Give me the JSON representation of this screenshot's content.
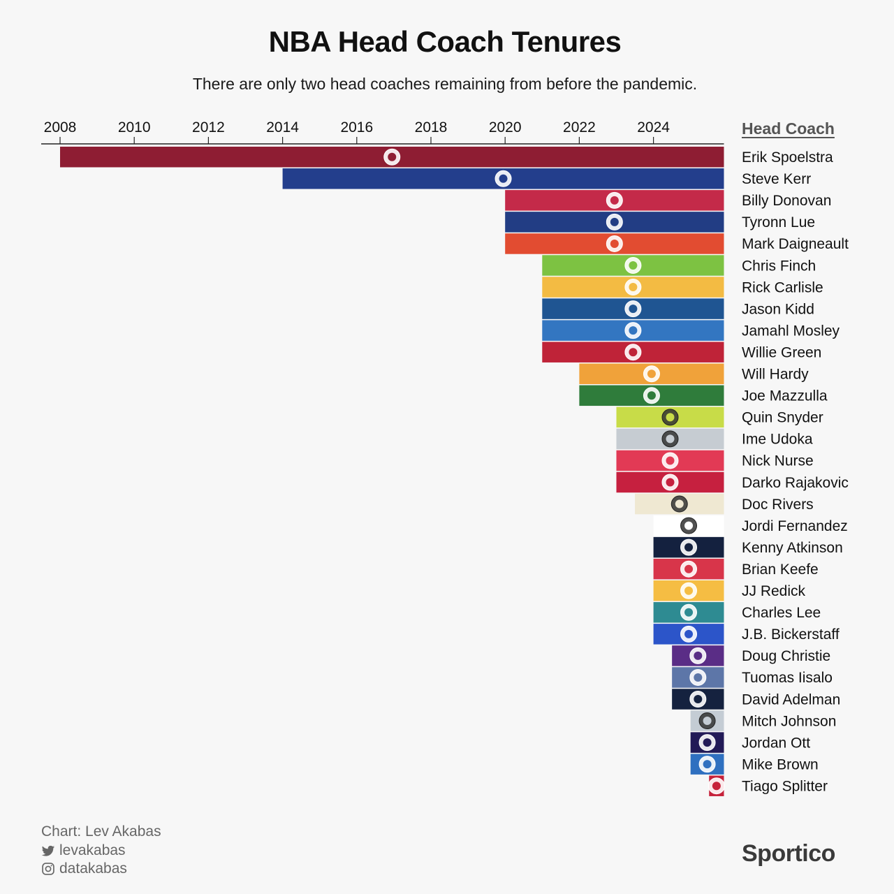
{
  "title": "NBA Head Coach Tenures",
  "subtitle": "There are only two head coaches remaining from before the pandemic.",
  "credits": {
    "chart_by": "Chart: Lev Akabas",
    "twitter": "levakabas",
    "instagram": "datakabas"
  },
  "brand": "Sportico",
  "chart_data": {
    "type": "bar",
    "orientation": "horizontal",
    "title": "NBA Head Coach Tenures",
    "subtitle": "There are only two head coaches remaining from before the pandemic.",
    "legend_header": "Head Coach",
    "x_ticks": [
      "2008",
      "2010",
      "2012",
      "2014",
      "2016",
      "2018",
      "2020",
      "2022",
      "2024"
    ],
    "xlim": [
      2007.5,
      2025.9
    ],
    "end": 2025.9,
    "series": [
      {
        "coach": "Erik Spoelstra",
        "start": 2008.0,
        "color": "#8e1d33",
        "icon": "heat-logo"
      },
      {
        "coach": "Steve Kerr",
        "start": 2014.0,
        "color": "#233e8c",
        "icon": "warriors-logo"
      },
      {
        "coach": "Billy Donovan",
        "start": 2020.0,
        "color": "#c42a49",
        "icon": "bulls-logo"
      },
      {
        "coach": "Tyronn Lue",
        "start": 2020.0,
        "color": "#223d84",
        "icon": "clippers-logo"
      },
      {
        "coach": "Mark Daigneault",
        "start": 2020.0,
        "color": "#e24c31",
        "icon": "thunder-logo"
      },
      {
        "coach": "Chris Finch",
        "start": 2021.0,
        "color": "#7dc242",
        "icon": "timberwolves-logo"
      },
      {
        "coach": "Rick Carlisle",
        "start": 2021.0,
        "color": "#f3bb43",
        "icon": "pacers-logo"
      },
      {
        "coach": "Jason Kidd",
        "start": 2021.0,
        "color": "#1f5592",
        "icon": "mavericks-logo"
      },
      {
        "coach": "Jamahl Mosley",
        "start": 2021.0,
        "color": "#3376c1",
        "icon": "magic-logo"
      },
      {
        "coach": "Willie Green",
        "start": 2021.0,
        "color": "#bf2338",
        "icon": "pelicans-logo"
      },
      {
        "coach": "Will Hardy",
        "start": 2022.0,
        "color": "#f0a23a",
        "icon": "jazz-logo"
      },
      {
        "coach": "Joe Mazzulla",
        "start": 2022.0,
        "color": "#2f7c3b",
        "icon": "celtics-logo"
      },
      {
        "coach": "Quin Snyder",
        "start": 2023.0,
        "color": "#c8dc48",
        "icon": "hawks-logo"
      },
      {
        "coach": "Ime Udoka",
        "start": 2023.0,
        "color": "#c6ccd2",
        "icon": "rockets-logo"
      },
      {
        "coach": "Nick Nurse",
        "start": 2023.0,
        "color": "#e23a55",
        "icon": "76ers-logo"
      },
      {
        "coach": "Darko Rajakovic",
        "start": 2023.0,
        "color": "#c6203f",
        "icon": "raptors-logo"
      },
      {
        "coach": "Doc Rivers",
        "start": 2023.5,
        "color": "#efe8d2",
        "icon": "bucks-logo"
      },
      {
        "coach": "Jordi Fernandez",
        "start": 2024.0,
        "color": "#ffffff",
        "icon": "nets-logo"
      },
      {
        "coach": "Kenny Atkinson",
        "start": 2024.0,
        "color": "#14213f",
        "icon": "cavaliers-logo"
      },
      {
        "coach": "Brian Keefe",
        "start": 2024.0,
        "color": "#d8354a",
        "icon": "wizards-logo"
      },
      {
        "coach": "JJ Redick",
        "start": 2024.0,
        "color": "#f5bd43",
        "icon": "lakers-logo"
      },
      {
        "coach": "Charles Lee",
        "start": 2024.0,
        "color": "#2e8b92",
        "icon": "hornets-logo"
      },
      {
        "coach": "J.B. Bickerstaff",
        "start": 2024.0,
        "color": "#2c55c9",
        "icon": "pistons-logo"
      },
      {
        "coach": "Doug Christie",
        "start": 2024.5,
        "color": "#5a2d86",
        "icon": "kings-logo"
      },
      {
        "coach": "Tuomas Iisalo",
        "start": 2024.5,
        "color": "#5d76a8",
        "icon": "grizzlies-logo"
      },
      {
        "coach": "David Adelman",
        "start": 2024.5,
        "color": "#15223f",
        "icon": "nuggets-logo"
      },
      {
        "coach": "Mitch Johnson",
        "start": 2025.0,
        "color": "#c4ccd4",
        "icon": "spurs-logo"
      },
      {
        "coach": "Jordan Ott",
        "start": 2025.0,
        "color": "#221a57",
        "icon": "suns-logo"
      },
      {
        "coach": "Mike Brown",
        "start": 2025.0,
        "color": "#2f70c0",
        "icon": "knicks-logo"
      },
      {
        "coach": "Tiago Splitter",
        "start": 2025.5,
        "color": "#c6213a",
        "icon": "blazers-logo"
      }
    ]
  }
}
